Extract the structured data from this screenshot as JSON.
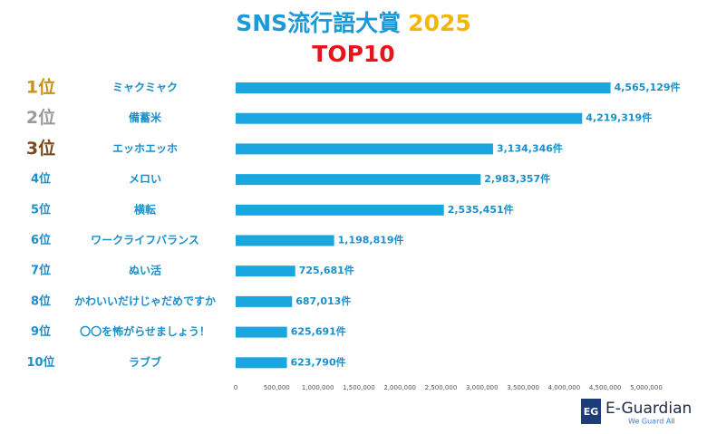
{
  "chart_data": {
    "type": "bar",
    "orientation": "horizontal",
    "title": "SNS流行語大賞",
    "title_year": "2025",
    "subtitle": "TOP10",
    "title_color": "#1a9ad6",
    "year_color": "#f2b705",
    "subtitle_color": "#e8141c",
    "ranks": [
      "1位",
      "2位",
      "3位",
      "4位",
      "5位",
      "6位",
      "7位",
      "8位",
      "9位",
      "10位"
    ],
    "rank_colors": [
      "#c9901a",
      "#9a9a9a",
      "#7a4a1e",
      "#1a8fc9",
      "#1a8fc9",
      "#1a8fc9",
      "#1a8fc9",
      "#1a8fc9",
      "#1a8fc9",
      "#1a8fc9"
    ],
    "categories": [
      "ミャクミャク",
      "備蓄米",
      "エッホエッホ",
      "メロい",
      "横転",
      "ワークライフバランス",
      "ぬい活",
      "かわいいだけじゃだめですか",
      "〇〇を怖がらせましょう！",
      "ラブブ"
    ],
    "values": [
      4565129,
      4219319,
      3134346,
      2983357,
      2535451,
      1198819,
      725681,
      687013,
      625691,
      623790
    ],
    "value_labels": [
      "4,565,129件",
      "4,219,319件",
      "3,134,346件",
      "2,983,357件",
      "2,535,451件",
      "1,198,819件",
      "725,681件",
      "687,013件",
      "625,691件",
      "623,790件"
    ],
    "color": "#1aa7e0",
    "xlim": [
      0,
      5000000
    ],
    "xticks": [
      0,
      {
        "value": 500000,
        "label": "500,000"
      },
      {
        "value": 1000000,
        "label": "1,000,000"
      },
      {
        "value": 1500000,
        "label": "1,500,000"
      },
      {
        "value": 2000000,
        "label": "2,000,000"
      },
      {
        "value": 2500000,
        "label": "2,500,000"
      },
      {
        "value": 3000000,
        "label": "3,000,000"
      },
      {
        "value": 3500000,
        "label": "3,500,000"
      },
      {
        "value": 4000000,
        "label": "4,000,000"
      },
      {
        "value": 4500000,
        "label": "4,500,000"
      },
      {
        "value": 5000000,
        "label": "5,000,000"
      }
    ],
    "grid": false
  },
  "logo": {
    "mark": "EG",
    "name": "E-Guardian",
    "tagline": "We Guard All"
  }
}
